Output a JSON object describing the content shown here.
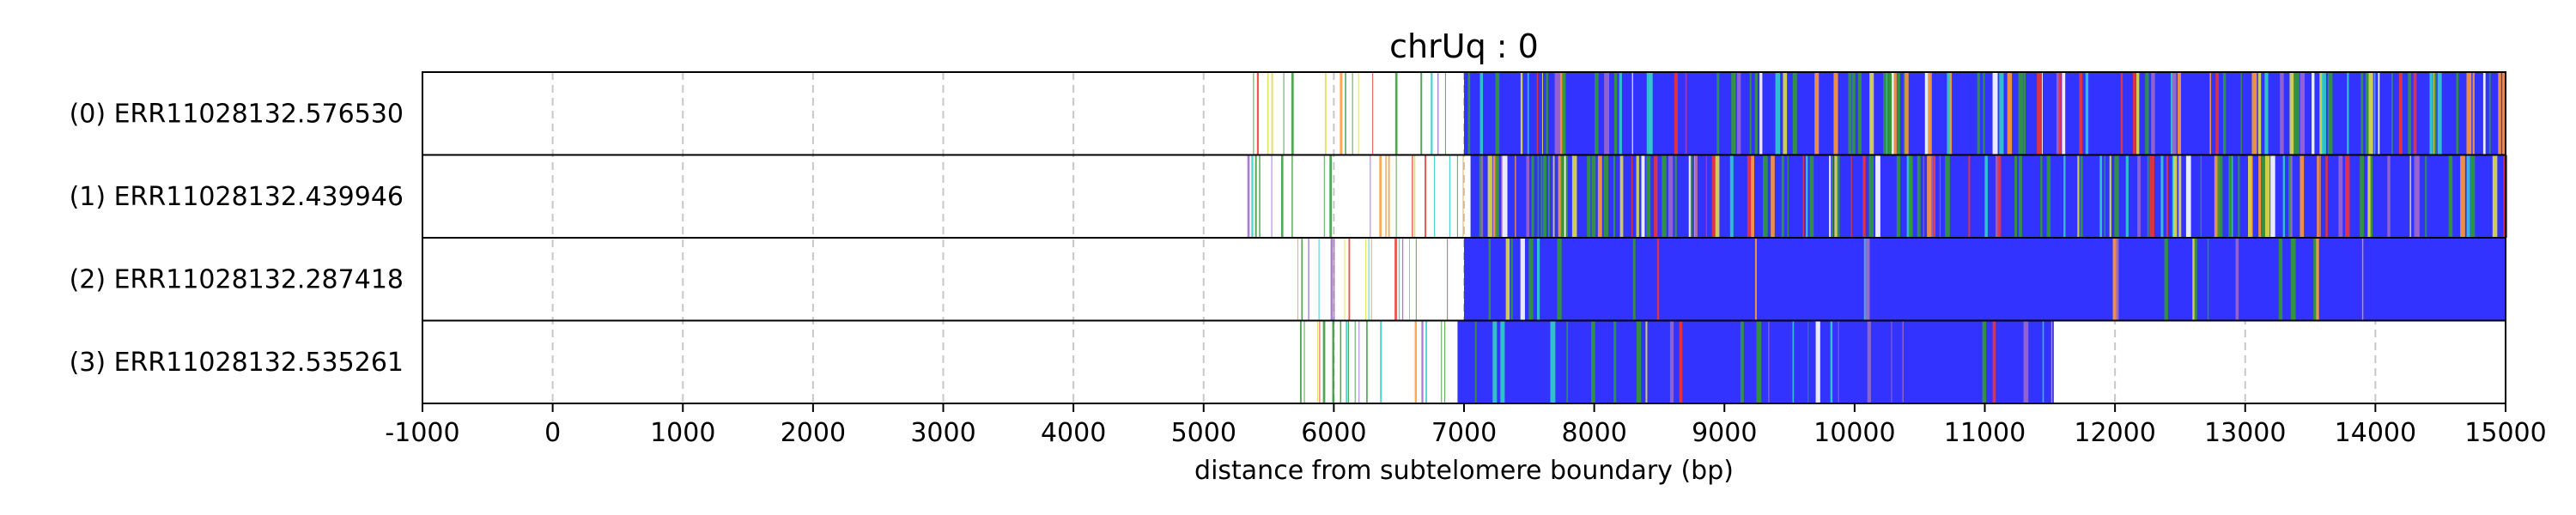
{
  "chart_data": {
    "type": "read-track",
    "title": "chrUq : 0",
    "xlabel": "distance from subtelomere boundary (bp)",
    "xlim": [
      -1000,
      15000
    ],
    "xticks": [
      -1000,
      0,
      1000,
      2000,
      3000,
      4000,
      5000,
      6000,
      7000,
      8000,
      9000,
      10000,
      11000,
      12000,
      13000,
      14000,
      15000
    ],
    "grid": "vertical-dashed",
    "colors": {
      "telomeric": "#3333ff",
      "variant_green": "#339933",
      "variant_yellow": "#dddd44",
      "variant_red": "#ee3333",
      "variant_cyan": "#33cccc",
      "variant_orange": "#ff9933",
      "variant_purple": "#9966cc",
      "gap": "#ffffff"
    },
    "reads": [
      {
        "label": "(0) ERR11028132.576530",
        "start": 5380,
        "end": 15000,
        "dense_start": 7000,
        "variant_density": 0.45,
        "seed": 11
      },
      {
        "label": "(1) ERR11028132.439946",
        "start": 5260,
        "end": 15000,
        "dense_start": 7050,
        "variant_density": 0.5,
        "seed": 23
      },
      {
        "label": "(2) ERR11028132.287418",
        "start": 5720,
        "end": 15000,
        "dense_start": 7000,
        "variant_density": 0.08,
        "seed": 37
      },
      {
        "label": "(3) ERR11028132.535261",
        "start": 5740,
        "end": 11530,
        "dense_start": 6950,
        "variant_density": 0.2,
        "seed": 53
      }
    ]
  }
}
